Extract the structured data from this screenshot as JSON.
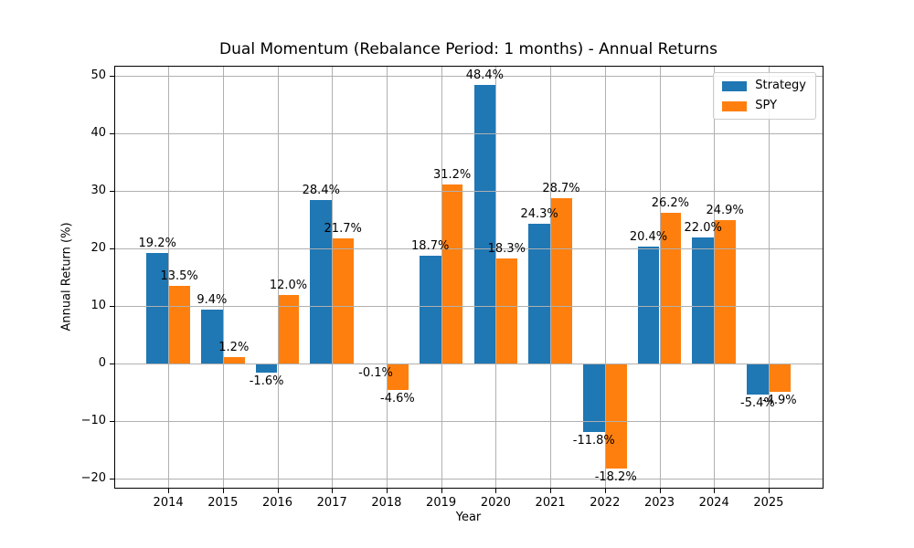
{
  "chart_data": {
    "type": "bar",
    "title": "Dual Momentum (Rebalance Period: 1 months) - Annual Returns",
    "xlabel": "Year",
    "ylabel": "Annual Return (%)",
    "categories": [
      2014,
      2015,
      2016,
      2017,
      2018,
      2019,
      2020,
      2021,
      2022,
      2023,
      2024,
      2025
    ],
    "series": [
      {
        "name": "Strategy",
        "color": "#1f77b4",
        "values": [
          19.2,
          9.4,
          -1.6,
          28.4,
          -0.1,
          18.7,
          48.4,
          24.3,
          -11.8,
          20.4,
          22.0,
          -5.4
        ],
        "labels": [
          "19.2%",
          "9.4%",
          "-1.6%",
          "28.4%",
          "-0.1%",
          "18.7%",
          "48.4%",
          "24.3%",
          "-11.8%",
          "20.4%",
          "22.0%",
          "-5.4%"
        ]
      },
      {
        "name": "SPY",
        "color": "#ff7f0e",
        "values": [
          13.5,
          1.2,
          12.0,
          21.7,
          -4.6,
          31.2,
          18.3,
          28.7,
          -18.2,
          26.2,
          24.9,
          -4.9
        ],
        "labels": [
          "13.5%",
          "1.2%",
          "12.0%",
          "21.7%",
          "-4.6%",
          "31.2%",
          "18.3%",
          "28.7%",
          "-18.2%",
          "26.2%",
          "24.9%",
          "-4.9%"
        ]
      }
    ],
    "bar_width": 0.4,
    "bar_offsets": [
      -0.2,
      0.2
    ],
    "yticks": [
      -20,
      -10,
      0,
      10,
      20,
      30,
      40,
      50
    ],
    "xticks": [
      2014,
      2015,
      2016,
      2017,
      2018,
      2019,
      2020,
      2021,
      2022,
      2023,
      2024,
      2025
    ],
    "ylim": [
      -21.53,
      51.73
    ],
    "xlim": [
      2013.01,
      2025.99
    ],
    "grid": true,
    "grid_color": "#b0b0b0",
    "axis_color": "#000000",
    "background": "#ffffff",
    "legend_position": "upper right"
  }
}
